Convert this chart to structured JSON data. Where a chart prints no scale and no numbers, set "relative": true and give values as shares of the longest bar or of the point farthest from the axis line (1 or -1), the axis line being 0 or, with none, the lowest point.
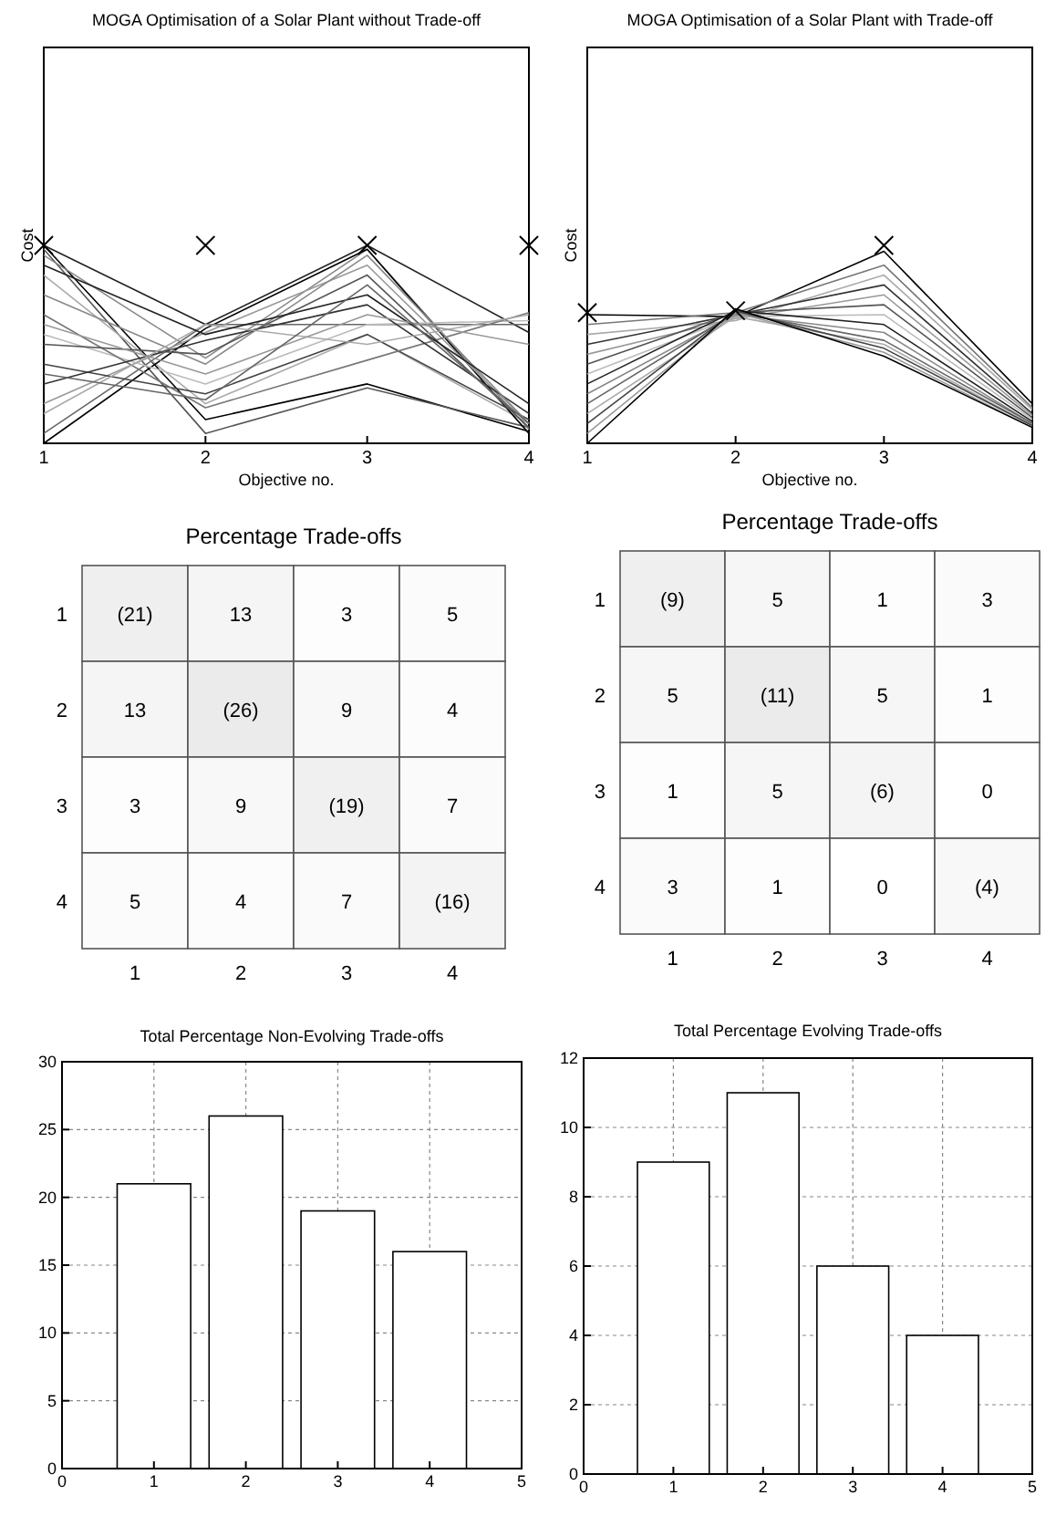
{
  "chart_data": [
    {
      "type": "line",
      "title": "MOGA Optimisation of a Solar Plant without Trade-off",
      "xlabel": "Objective no.",
      "ylabel": "Cost",
      "relative": true,
      "tick_labels": "x",
      "x": [
        1,
        2,
        3,
        4
      ],
      "xlim": [
        1,
        4
      ],
      "xticks": [
        1,
        2,
        3,
        4
      ],
      "series": [
        {
          "color": "#000000",
          "values": [
            1.0,
            0.12,
            0.3,
            0.06
          ]
        },
        {
          "color": "#555555",
          "values": [
            0.98,
            0.05,
            0.28,
            0.08
          ]
        },
        {
          "color": "#888888",
          "values": [
            0.95,
            0.43,
            0.98,
            0.07
          ]
        },
        {
          "color": "#222222",
          "values": [
            1.0,
            0.6,
            1.0,
            0.56
          ]
        },
        {
          "color": "#aaaaaa",
          "values": [
            0.85,
            0.2,
            0.55,
            0.1
          ]
        },
        {
          "color": "#000000",
          "values": [
            0.0,
            0.58,
            0.98,
            0.05
          ]
        },
        {
          "color": "#666666",
          "values": [
            0.05,
            0.6,
            0.6,
            0.6
          ]
        },
        {
          "color": "#999999",
          "values": [
            0.2,
            0.56,
            0.9,
            0.1
          ]
        },
        {
          "color": "#444444",
          "values": [
            0.4,
            0.25,
            0.55,
            0.12
          ]
        },
        {
          "color": "#bbbbbb",
          "values": [
            0.55,
            0.3,
            0.6,
            0.62
          ]
        },
        {
          "color": "#777777",
          "values": [
            0.65,
            0.18,
            0.42,
            0.66
          ]
        },
        {
          "color": "#333333",
          "values": [
            0.3,
            0.52,
            0.7,
            0.15
          ]
        },
        {
          "color": "#888888",
          "values": [
            0.75,
            0.4,
            0.95,
            0.1
          ]
        },
        {
          "color": "#555555",
          "values": [
            0.5,
            0.45,
            0.85,
            0.08
          ]
        },
        {
          "color": "#aaaaaa",
          "values": [
            0.15,
            0.6,
            0.5,
            0.65
          ]
        },
        {
          "color": "#222222",
          "values": [
            0.9,
            0.55,
            0.75,
            0.2
          ]
        },
        {
          "color": "#999999",
          "values": [
            0.6,
            0.35,
            0.65,
            0.5
          ]
        },
        {
          "color": "#666666",
          "values": [
            0.35,
            0.22,
            0.8,
            0.1
          ]
        },
        {
          "type": "scatter",
          "marker": "cross",
          "color": "#000000",
          "values": [
            1.0,
            1.0,
            1.0,
            1.0
          ]
        }
      ]
    },
    {
      "type": "line",
      "title": "MOGA Optimisation of a Solar Plant with Trade-off",
      "xlabel": "Objective no.",
      "ylabel": "Cost",
      "relative": true,
      "tick_labels": "x",
      "x": [
        1,
        2,
        3,
        4
      ],
      "xlim": [
        1,
        4
      ],
      "xticks": [
        1,
        2,
        3,
        4
      ],
      "series": [
        {
          "color": "#000000",
          "values": [
            0.65,
            0.64,
            0.97,
            0.2
          ]
        },
        {
          "color": "#777777",
          "values": [
            0.6,
            0.66,
            0.9,
            0.18
          ]
        },
        {
          "color": "#aaaaaa",
          "values": [
            0.55,
            0.62,
            0.85,
            0.17
          ]
        },
        {
          "color": "#333333",
          "values": [
            0.5,
            0.65,
            0.8,
            0.15
          ]
        },
        {
          "color": "#999999",
          "values": [
            0.45,
            0.63,
            0.75,
            0.14
          ]
        },
        {
          "color": "#555555",
          "values": [
            0.4,
            0.66,
            0.7,
            0.13
          ]
        },
        {
          "color": "#bbbbbb",
          "values": [
            0.35,
            0.64,
            0.65,
            0.12
          ]
        },
        {
          "color": "#222222",
          "values": [
            0.3,
            0.67,
            0.6,
            0.11
          ]
        },
        {
          "color": "#888888",
          "values": [
            0.25,
            0.65,
            0.56,
            0.1
          ]
        },
        {
          "color": "#666666",
          "values": [
            0.2,
            0.66,
            0.52,
            0.1
          ]
        },
        {
          "color": "#aaaaaa",
          "values": [
            0.15,
            0.64,
            0.5,
            0.09
          ]
        },
        {
          "color": "#444444",
          "values": [
            0.1,
            0.67,
            0.48,
            0.09
          ]
        },
        {
          "color": "#999999",
          "values": [
            0.05,
            0.66,
            0.46,
            0.08
          ]
        },
        {
          "color": "#000000",
          "values": [
            0.0,
            0.68,
            0.44,
            0.08
          ]
        },
        {
          "type": "scatter",
          "marker": "cross",
          "color": "#000000",
          "values": [
            0.66,
            0.67,
            1.0,
            null
          ]
        }
      ]
    },
    {
      "type": "heatmap",
      "title": "Percentage Trade-offs",
      "categories": [
        "1",
        "2",
        "3",
        "4"
      ],
      "y_categories": [
        "1",
        "2",
        "3",
        "4"
      ],
      "cells": [
        [
          21,
          13,
          3,
          5
        ],
        [
          13,
          26,
          9,
          4
        ],
        [
          3,
          9,
          19,
          7
        ],
        [
          5,
          4,
          7,
          16
        ]
      ],
      "cell_labels": [
        [
          "(21)",
          "13",
          "3",
          "5"
        ],
        [
          "13",
          "(26)",
          "9",
          "4"
        ],
        [
          "3",
          "9",
          "(19)",
          "7"
        ],
        [
          "5",
          "4",
          "7",
          "(16)"
        ]
      ]
    },
    {
      "type": "heatmap",
      "title": "Percentage Trade-offs",
      "categories": [
        "1",
        "2",
        "3",
        "4"
      ],
      "y_categories": [
        "1",
        "2",
        "3",
        "4"
      ],
      "cells": [
        [
          9,
          5,
          1,
          3
        ],
        [
          5,
          11,
          5,
          1
        ],
        [
          1,
          5,
          6,
          0
        ],
        [
          3,
          1,
          0,
          4
        ]
      ],
      "cell_labels": [
        [
          "(9)",
          "5",
          "1",
          "3"
        ],
        [
          "5",
          "(11)",
          "5",
          "1"
        ],
        [
          "1",
          "5",
          "(6)",
          "0"
        ],
        [
          "3",
          "1",
          "0",
          "(4)"
        ]
      ]
    },
    {
      "type": "bar",
      "title": "Total Percentage Non-Evolving Trade-offs",
      "x": [
        1,
        2,
        3,
        4
      ],
      "values": [
        21,
        26,
        19,
        16
      ],
      "color": "#ffffff",
      "xlim": [
        0,
        5
      ],
      "xticks": [
        0,
        1,
        2,
        3,
        4,
        5
      ],
      "ylim": [
        0,
        30
      ],
      "yticks": [
        0,
        5,
        10,
        15,
        20,
        25,
        30
      ],
      "grid": true
    },
    {
      "type": "bar",
      "title": "Total Percentage Evolving Trade-offs",
      "x": [
        1,
        2,
        3,
        4
      ],
      "values": [
        9,
        11,
        6,
        4
      ],
      "color": "#ffffff",
      "xlim": [
        0,
        5
      ],
      "xticks": [
        0,
        1,
        2,
        3,
        4,
        5
      ],
      "ylim": [
        0,
        12
      ],
      "yticks": [
        0,
        2,
        4,
        6,
        8,
        10,
        12
      ],
      "grid": true
    }
  ]
}
